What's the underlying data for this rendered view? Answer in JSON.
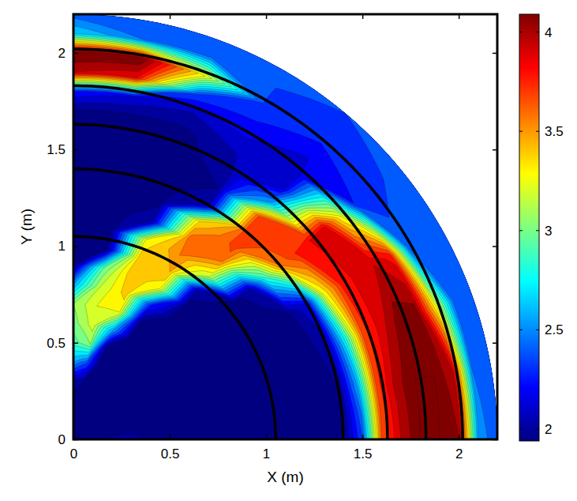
{
  "chart_data": {
    "type": "contour",
    "x_label": "X (m)",
    "y_label": "Y (m)",
    "xlim": [
      0,
      2.2
    ],
    "ylim": [
      0,
      2.2
    ],
    "xticks": [
      0,
      0.5,
      1,
      1.5,
      2
    ],
    "yticks": [
      0,
      0.5,
      1,
      1.5,
      2
    ],
    "radius": 2.2,
    "r": [
      0,
      0.1,
      0.2,
      0.3,
      0.4,
      0.5,
      0.6,
      0.7,
      0.8,
      0.9,
      1.0,
      1.1,
      1.2,
      1.3,
      1.4,
      1.5,
      1.6,
      1.7,
      1.8,
      1.9,
      2.0,
      2.1,
      2.2
    ],
    "theta": [
      0,
      10,
      20,
      30,
      40,
      50,
      60,
      70,
      80,
      90
    ],
    "z": [
      [
        1.95,
        1.97,
        2.05,
        2.1,
        1.96,
        1.93,
        1.93,
        1.93,
        1.93,
        1.93,
        1.93,
        1.93,
        1.94,
        1.95,
        1.98,
        2.4,
        3.7,
        4.0,
        4.2,
        4.2,
        4.1,
        2.6,
        2.4
      ],
      [
        1.95,
        1.95,
        1.96,
        1.95,
        1.94,
        1.93,
        1.93,
        1.93,
        1.93,
        1.93,
        1.93,
        1.93,
        1.94,
        1.95,
        2.0,
        2.6,
        3.75,
        4.05,
        4.2,
        4.2,
        4.0,
        2.5,
        2.4
      ],
      [
        1.95,
        1.94,
        1.94,
        1.94,
        1.93,
        1.93,
        1.93,
        1.93,
        1.93,
        1.93,
        1.93,
        1.93,
        1.94,
        1.96,
        2.05,
        2.8,
        3.75,
        3.95,
        4.15,
        4.15,
        3.35,
        2.45,
        2.4
      ],
      [
        1.95,
        1.94,
        1.94,
        1.93,
        1.93,
        1.93,
        1.93,
        1.93,
        1.93,
        1.93,
        1.93,
        1.94,
        1.96,
        2.0,
        2.2,
        3.3,
        3.8,
        3.95,
        4.0,
        3.85,
        2.45,
        2.4,
        2.4
      ],
      [
        1.95,
        1.94,
        1.94,
        1.93,
        1.93,
        1.93,
        1.93,
        1.93,
        1.93,
        1.94,
        1.95,
        1.97,
        2.05,
        2.9,
        3.6,
        3.8,
        3.9,
        3.95,
        3.3,
        2.3,
        2.35,
        2.4,
        2.45
      ],
      [
        1.95,
        1.94,
        1.93,
        1.93,
        1.93,
        1.93,
        1.93,
        1.93,
        1.94,
        1.96,
        2.05,
        3.2,
        3.6,
        3.75,
        3.8,
        3.75,
        2.6,
        2.15,
        2.1,
        2.2,
        2.3,
        2.35,
        2.4
      ],
      [
        1.95,
        1.94,
        1.93,
        1.93,
        1.93,
        1.94,
        1.95,
        1.98,
        2.3,
        3.3,
        3.5,
        3.6,
        3.65,
        3.4,
        2.1,
        2.0,
        2.05,
        2.1,
        2.2,
        2.3,
        2.35,
        2.4,
        2.45
      ],
      [
        1.95,
        1.94,
        1.93,
        1.93,
        1.94,
        1.97,
        2.6,
        3.3,
        3.45,
        3.5,
        3.45,
        3.3,
        2.1,
        1.97,
        1.95,
        1.95,
        1.96,
        1.98,
        2.1,
        2.4,
        3.3,
        2.5,
        2.45
      ],
      [
        1.95,
        1.94,
        1.95,
        2.0,
        2.4,
        3.1,
        3.25,
        3.3,
        3.2,
        3.0,
        2.0,
        1.94,
        1.93,
        1.93,
        1.93,
        1.93,
        1.94,
        1.98,
        2.2,
        3.9,
        4.2,
        2.5,
        2.45
      ],
      [
        1.95,
        1.94,
        1.95,
        2.05,
        2.6,
        2.95,
        3.05,
        3.1,
        2.6,
        2.0,
        1.95,
        1.94,
        1.93,
        1.93,
        1.93,
        1.93,
        1.94,
        1.98,
        2.3,
        4.0,
        4.2,
        2.7,
        2.45
      ]
    ],
    "levels": [
      1.9,
      2.0,
      2.1,
      2.2,
      2.3,
      2.4,
      2.5,
      2.6,
      2.7,
      2.8,
      2.9,
      3.0,
      3.1,
      3.2,
      3.3,
      3.4,
      3.5,
      3.6,
      3.7,
      3.8,
      3.9,
      4.0,
      4.1,
      4.2
    ],
    "arcs": [
      1.05,
      1.4,
      1.63,
      1.83,
      2.02
    ],
    "colorbar": {
      "range": [
        1.94,
        4.09
      ],
      "ticks": [
        2,
        2.5,
        3,
        3.5,
        4
      ]
    }
  }
}
